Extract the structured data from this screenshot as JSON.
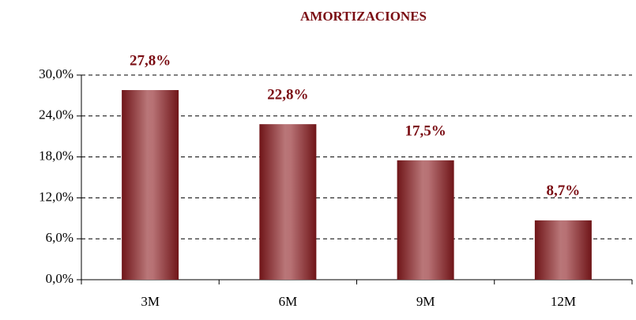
{
  "chart_data": {
    "type": "bar",
    "title": "AMORTIZACIONES",
    "categories": [
      "3M",
      "6M",
      "9M",
      "12M"
    ],
    "values": [
      27.8,
      22.8,
      17.5,
      8.7
    ],
    "value_labels": [
      "27,8%",
      "22,8%",
      "17,5%",
      "8,7%"
    ],
    "color": "#8b1a1e",
    "ylim": [
      0,
      30
    ],
    "yticks": [
      {
        "value": 0,
        "label": "0,0%"
      },
      {
        "value": 6,
        "label": "6,0%"
      },
      {
        "value": 12,
        "label": "12,0%"
      },
      {
        "value": 18,
        "label": "18,0%"
      },
      {
        "value": 24,
        "label": "24,0%"
      },
      {
        "value": 30,
        "label": "30,0%"
      }
    ],
    "grid": true
  }
}
